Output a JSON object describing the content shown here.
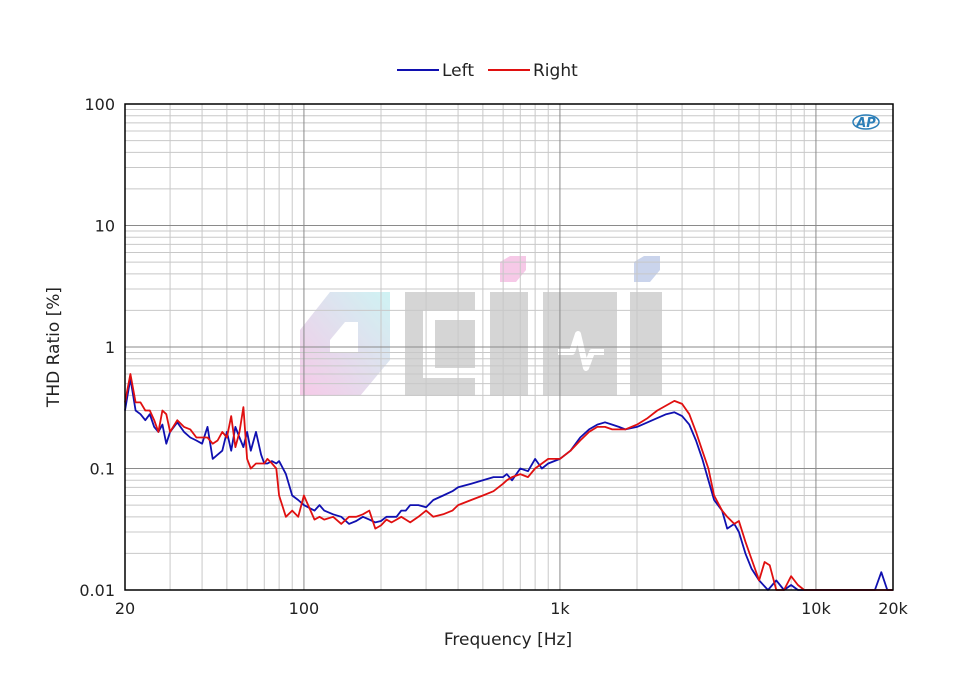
{
  "chart_data": {
    "type": "line",
    "title": "",
    "xlabel": "Frequency [Hz]",
    "ylabel": "THD Ratio [%]",
    "x_scale": "log",
    "y_scale": "log",
    "xlim": [
      20,
      20000
    ],
    "ylim": [
      0.01,
      100
    ],
    "grid": true,
    "legend_position": "top-center",
    "x_ticks": [
      {
        "value": 20,
        "label": "20"
      },
      {
        "value": 100,
        "label": "100"
      },
      {
        "value": 1000,
        "label": "1k"
      },
      {
        "value": 10000,
        "label": "10k"
      },
      {
        "value": 20000,
        "label": "20k"
      }
    ],
    "y_ticks": [
      {
        "value": 0.01,
        "label": "0.01"
      },
      {
        "value": 0.1,
        "label": "0.1"
      },
      {
        "value": 1,
        "label": "1"
      },
      {
        "value": 10,
        "label": "10"
      },
      {
        "value": 100,
        "label": "100"
      }
    ],
    "series": [
      {
        "name": "Left",
        "color": "#1010b0",
        "points": [
          [
            20,
            0.3
          ],
          [
            21,
            0.55
          ],
          [
            22,
            0.3
          ],
          [
            23,
            0.28
          ],
          [
            24,
            0.25
          ],
          [
            25,
            0.28
          ],
          [
            26,
            0.22
          ],
          [
            27,
            0.2
          ],
          [
            28,
            0.23
          ],
          [
            29,
            0.16
          ],
          [
            30,
            0.2
          ],
          [
            32,
            0.24
          ],
          [
            34,
            0.2
          ],
          [
            36,
            0.18
          ],
          [
            38,
            0.17
          ],
          [
            40,
            0.16
          ],
          [
            42,
            0.22
          ],
          [
            44,
            0.12
          ],
          [
            46,
            0.13
          ],
          [
            48,
            0.14
          ],
          [
            50,
            0.2
          ],
          [
            52,
            0.14
          ],
          [
            54,
            0.22
          ],
          [
            56,
            0.18
          ],
          [
            58,
            0.15
          ],
          [
            60,
            0.2
          ],
          [
            62,
            0.14
          ],
          [
            65,
            0.2
          ],
          [
            68,
            0.13
          ],
          [
            70,
            0.11
          ],
          [
            72,
            0.11
          ],
          [
            75,
            0.115
          ],
          [
            78,
            0.11
          ],
          [
            80,
            0.115
          ],
          [
            85,
            0.09
          ],
          [
            90,
            0.06
          ],
          [
            95,
            0.055
          ],
          [
            100,
            0.05
          ],
          [
            110,
            0.045
          ],
          [
            115,
            0.05
          ],
          [
            120,
            0.045
          ],
          [
            130,
            0.042
          ],
          [
            140,
            0.04
          ],
          [
            150,
            0.035
          ],
          [
            160,
            0.037
          ],
          [
            170,
            0.04
          ],
          [
            180,
            0.038
          ],
          [
            190,
            0.036
          ],
          [
            200,
            0.037
          ],
          [
            210,
            0.04
          ],
          [
            220,
            0.04
          ],
          [
            230,
            0.04
          ],
          [
            240,
            0.045
          ],
          [
            250,
            0.045
          ],
          [
            260,
            0.05
          ],
          [
            280,
            0.05
          ],
          [
            300,
            0.048
          ],
          [
            320,
            0.055
          ],
          [
            350,
            0.06
          ],
          [
            380,
            0.065
          ],
          [
            400,
            0.07
          ],
          [
            450,
            0.075
          ],
          [
            500,
            0.08
          ],
          [
            550,
            0.085
          ],
          [
            600,
            0.085
          ],
          [
            620,
            0.09
          ],
          [
            650,
            0.08
          ],
          [
            700,
            0.1
          ],
          [
            750,
            0.095
          ],
          [
            800,
            0.12
          ],
          [
            850,
            0.1
          ],
          [
            900,
            0.11
          ],
          [
            1000,
            0.12
          ],
          [
            1100,
            0.14
          ],
          [
            1200,
            0.18
          ],
          [
            1300,
            0.21
          ],
          [
            1400,
            0.23
          ],
          [
            1500,
            0.24
          ],
          [
            1600,
            0.23
          ],
          [
            1700,
            0.22
          ],
          [
            1800,
            0.21
          ],
          [
            2000,
            0.22
          ],
          [
            2200,
            0.24
          ],
          [
            2400,
            0.26
          ],
          [
            2600,
            0.28
          ],
          [
            2800,
            0.29
          ],
          [
            3000,
            0.27
          ],
          [
            3200,
            0.23
          ],
          [
            3400,
            0.17
          ],
          [
            3600,
            0.12
          ],
          [
            3800,
            0.08
          ],
          [
            4000,
            0.055
          ],
          [
            4300,
            0.045
          ],
          [
            4500,
            0.032
          ],
          [
            4800,
            0.035
          ],
          [
            5000,
            0.03
          ],
          [
            5300,
            0.02
          ],
          [
            5600,
            0.015
          ],
          [
            6000,
            0.012
          ],
          [
            6500,
            0.01
          ],
          [
            7000,
            0.012
          ],
          [
            7500,
            0.01
          ],
          [
            8000,
            0.011
          ],
          [
            8500,
            0.01
          ],
          [
            9000,
            0.01
          ],
          [
            10000,
            0.01
          ],
          [
            12000,
            0.01
          ],
          [
            15000,
            0.01
          ],
          [
            17000,
            0.01
          ],
          [
            18000,
            0.014
          ],
          [
            19000,
            0.01
          ],
          [
            20000,
            0.01
          ]
        ]
      },
      {
        "name": "Right",
        "color": "#e01010",
        "points": [
          [
            20,
            0.35
          ],
          [
            21,
            0.6
          ],
          [
            22,
            0.35
          ],
          [
            23,
            0.35
          ],
          [
            24,
            0.3
          ],
          [
            25,
            0.3
          ],
          [
            26,
            0.25
          ],
          [
            27,
            0.2
          ],
          [
            28,
            0.3
          ],
          [
            29,
            0.28
          ],
          [
            30,
            0.2
          ],
          [
            32,
            0.25
          ],
          [
            34,
            0.22
          ],
          [
            36,
            0.21
          ],
          [
            38,
            0.18
          ],
          [
            40,
            0.18
          ],
          [
            42,
            0.18
          ],
          [
            44,
            0.16
          ],
          [
            46,
            0.17
          ],
          [
            48,
            0.2
          ],
          [
            50,
            0.18
          ],
          [
            52,
            0.27
          ],
          [
            54,
            0.15
          ],
          [
            56,
            0.2
          ],
          [
            58,
            0.32
          ],
          [
            60,
            0.12
          ],
          [
            62,
            0.1
          ],
          [
            65,
            0.11
          ],
          [
            68,
            0.11
          ],
          [
            70,
            0.11
          ],
          [
            72,
            0.12
          ],
          [
            75,
            0.11
          ],
          [
            78,
            0.1
          ],
          [
            80,
            0.06
          ],
          [
            85,
            0.04
          ],
          [
            90,
            0.045
          ],
          [
            95,
            0.04
          ],
          [
            100,
            0.06
          ],
          [
            110,
            0.038
          ],
          [
            115,
            0.04
          ],
          [
            120,
            0.038
          ],
          [
            130,
            0.04
          ],
          [
            140,
            0.035
          ],
          [
            150,
            0.04
          ],
          [
            160,
            0.04
          ],
          [
            170,
            0.042
          ],
          [
            180,
            0.045
          ],
          [
            190,
            0.032
          ],
          [
            200,
            0.034
          ],
          [
            210,
            0.038
          ],
          [
            220,
            0.036
          ],
          [
            230,
            0.038
          ],
          [
            240,
            0.04
          ],
          [
            250,
            0.038
          ],
          [
            260,
            0.036
          ],
          [
            280,
            0.04
          ],
          [
            300,
            0.045
          ],
          [
            320,
            0.04
          ],
          [
            350,
            0.042
          ],
          [
            380,
            0.045
          ],
          [
            400,
            0.05
          ],
          [
            450,
            0.055
          ],
          [
            500,
            0.06
          ],
          [
            550,
            0.065
          ],
          [
            600,
            0.075
          ],
          [
            620,
            0.08
          ],
          [
            650,
            0.085
          ],
          [
            700,
            0.09
          ],
          [
            750,
            0.085
          ],
          [
            800,
            0.1
          ],
          [
            850,
            0.11
          ],
          [
            900,
            0.12
          ],
          [
            1000,
            0.12
          ],
          [
            1100,
            0.14
          ],
          [
            1200,
            0.17
          ],
          [
            1300,
            0.2
          ],
          [
            1400,
            0.22
          ],
          [
            1500,
            0.22
          ],
          [
            1600,
            0.21
          ],
          [
            1700,
            0.21
          ],
          [
            1800,
            0.21
          ],
          [
            2000,
            0.23
          ],
          [
            2200,
            0.26
          ],
          [
            2400,
            0.3
          ],
          [
            2600,
            0.33
          ],
          [
            2800,
            0.36
          ],
          [
            3000,
            0.34
          ],
          [
            3200,
            0.28
          ],
          [
            3400,
            0.2
          ],
          [
            3600,
            0.14
          ],
          [
            3800,
            0.1
          ],
          [
            4000,
            0.06
          ],
          [
            4300,
            0.045
          ],
          [
            4500,
            0.04
          ],
          [
            4800,
            0.035
          ],
          [
            5000,
            0.037
          ],
          [
            5300,
            0.025
          ],
          [
            5600,
            0.018
          ],
          [
            6000,
            0.012
          ],
          [
            6300,
            0.017
          ],
          [
            6600,
            0.016
          ],
          [
            7000,
            0.01
          ],
          [
            7500,
            0.01
          ],
          [
            8000,
            0.013
          ],
          [
            8500,
            0.011
          ],
          [
            9000,
            0.01
          ],
          [
            10000,
            0.01
          ],
          [
            12000,
            0.01
          ],
          [
            15000,
            0.01
          ],
          [
            20000,
            0.01
          ]
        ]
      }
    ]
  },
  "watermark": {
    "text": "CIMI",
    "colors": {
      "pink": "#f3b8e0",
      "cyan": "#bfeff0",
      "gray": "#c8c8c8",
      "blue": "#b9c6e6"
    }
  },
  "ap_logo": {
    "text": "AP",
    "color": "#2c7fb8"
  }
}
